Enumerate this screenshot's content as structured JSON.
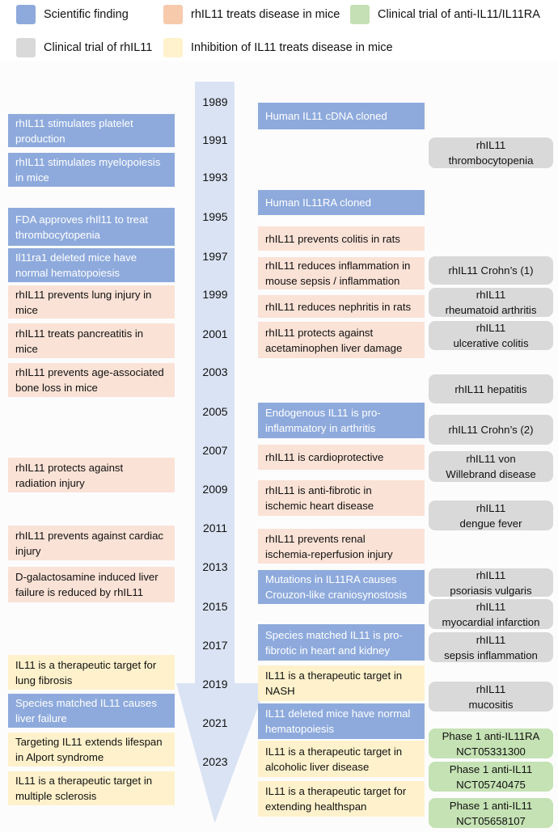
{
  "colors": {
    "scientific": "#8eaadc",
    "mice": "#fae2d6",
    "clinical_anti": "#c5e2b4",
    "clinical_rh": "#d9d9d9",
    "inhibition": "#fef1cb",
    "arrow": "#dae3f3"
  },
  "legend": [
    {
      "label": "Scientific finding",
      "color": "#8eaadc"
    },
    {
      "label": "rhIL11 treats disease in mice",
      "color": "#f7caac"
    },
    {
      "label": "Clinical trial of anti-IL11/IL11RA",
      "color": "#c5e0b4"
    },
    {
      "label": "Clinical trial of rhIL11",
      "color": "#d9d9d9"
    },
    {
      "label": "Inhibition of IL11 treats disease in mice",
      "color": "#fff2cc"
    }
  ],
  "years": [
    "1989",
    "1991",
    "1993",
    "1995",
    "1997",
    "1999",
    "2001",
    "2003",
    "2005",
    "2007",
    "2009",
    "2011",
    "2013",
    "2015",
    "2017",
    "2019",
    "2021",
    "2023"
  ],
  "left_events": [
    {
      "kind": "sci",
      "l1": "rhIL11 stimulates platelet",
      "l2": "production"
    },
    {
      "kind": "sci",
      "l1": "rhIL11 stimulates myelopoiesis",
      "l2": "in mice"
    },
    {
      "kind": "sci",
      "l1": "FDA approves rhIl11 to treat",
      "l2": "thrombocytopenia"
    },
    {
      "kind": "sci",
      "l1": "Il11ra1 deleted mice have",
      "l2": "normal hematopoiesis"
    },
    {
      "kind": "mice",
      "l1": "rhIL11 prevents lung injury in",
      "l2": "mice"
    },
    {
      "kind": "mice",
      "l1": "rhIL11 treats pancreatitis in",
      "l2": "mice"
    },
    {
      "kind": "mice",
      "l1": "rhIL11 prevents age-associated",
      "l2": "bone loss in mice"
    },
    {
      "kind": "mice",
      "l1": "rhIL11 protects against",
      "l2": "radiation injury"
    },
    {
      "kind": "mice",
      "l1": "rhIL11 prevents against cardiac",
      "l2": "injury"
    },
    {
      "kind": "mice",
      "l1": "D-galactosamine induced liver",
      "l2": "failure is reduced by rhIL11"
    },
    {
      "kind": "inh",
      "l1": "IL11 is a therapeutic target for",
      "l2": "lung fibrosis"
    },
    {
      "kind": "sci",
      "l1": "Species matched IL11 causes",
      "l2": "liver failure"
    },
    {
      "kind": "inh",
      "l1": "Targeting IL11 extends lifespan",
      "l2": "in Alport syndrome"
    },
    {
      "kind": "inh",
      "l1": "IL11 is a therapeutic target in",
      "l2": "multiple sclerosis"
    }
  ],
  "mid_events": [
    {
      "kind": "sci",
      "l1": "Human IL11 cDNA cloned",
      "l2": ""
    },
    {
      "kind": "sci",
      "l1": "Human IL11RA cloned",
      "l2": ""
    },
    {
      "kind": "mice",
      "l1": "rhIL11 prevents colitis in rats",
      "l2": ""
    },
    {
      "kind": "mice",
      "l1": "rhIL11 reduces inflammation in",
      "l2": "mouse sepsis / inflammation"
    },
    {
      "kind": "mice",
      "l1": "rhIL11 reduces nephritis in rats",
      "l2": ""
    },
    {
      "kind": "mice",
      "l1": "rhIL11 protects against",
      "l2": "acetaminophen liver damage"
    },
    {
      "kind": "sci",
      "l1": "Endogenous IL11 is pro-",
      "l2": "inflammatory in arthritis"
    },
    {
      "kind": "mice",
      "l1": "rhIL11 is cardioprotective",
      "l2": ""
    },
    {
      "kind": "mice",
      "l1": "rhIL11 is anti-fibrotic in",
      "l2": "ischemic heart disease"
    },
    {
      "kind": "mice",
      "l1": "rhIL11 prevents renal",
      "l2": "ischemia-reperfusion injury"
    },
    {
      "kind": "sci",
      "l1": "Mutations in IL11RA causes",
      "l2": "Crouzon-like craniosynostosis"
    },
    {
      "kind": "sci",
      "l1": "Species matched IL11 is pro-",
      "l2": "fibrotic in heart and kidney"
    },
    {
      "kind": "inh",
      "l1": "IL11 is a therapeutic target in",
      "l2": "NASH"
    },
    {
      "kind": "sci",
      "l1": "IL11 deleted mice have normal",
      "l2": "hematopoiesis"
    },
    {
      "kind": "inh",
      "l1": "IL11 is a therapeutic target in",
      "l2": "alcoholic liver disease"
    },
    {
      "kind": "inh",
      "l1": "IL11 is a therapeutic target for",
      "l2": "extending healthspan"
    }
  ],
  "trials": [
    {
      "kind": "gray",
      "l1": "rhIL11",
      "l2": "thrombocytopenia"
    },
    {
      "kind": "gray",
      "l1": "rhIL11 Crohn’s (1)",
      "l2": ""
    },
    {
      "kind": "gray",
      "l1": "rhIL11",
      "l2": "rheumatoid arthritis"
    },
    {
      "kind": "gray",
      "l1": "rhIL11",
      "l2": "ulcerative colitis"
    },
    {
      "kind": "gray",
      "l1": "rhIL11 hepatitis",
      "l2": ""
    },
    {
      "kind": "gray",
      "l1": "rhIL11 Crohn’s (2)",
      "l2": ""
    },
    {
      "kind": "gray",
      "l1": "rhIL11 von",
      "l2": "Willebrand disease"
    },
    {
      "kind": "gray",
      "l1": "rhIL11",
      "l2": "dengue fever"
    },
    {
      "kind": "gray",
      "l1": "rhIL11",
      "l2": "psoriasis vulgaris"
    },
    {
      "kind": "gray",
      "l1": "rhIL11",
      "l2": "myocardial infarction"
    },
    {
      "kind": "gray",
      "l1": "rhIL11",
      "l2": "sepsis inflammation"
    },
    {
      "kind": "gray",
      "l1": "rhIL11",
      "l2": "mucositis"
    },
    {
      "kind": "green",
      "l1": "Phase 1 anti-IL11RA",
      "l2": "NCT05331300"
    },
    {
      "kind": "green",
      "l1": "Phase 1 anti-IL11",
      "l2": "NCT05740475"
    },
    {
      "kind": "green",
      "l1": "Phase 1 anti-IL11",
      "l2": "NCT05658107"
    }
  ]
}
